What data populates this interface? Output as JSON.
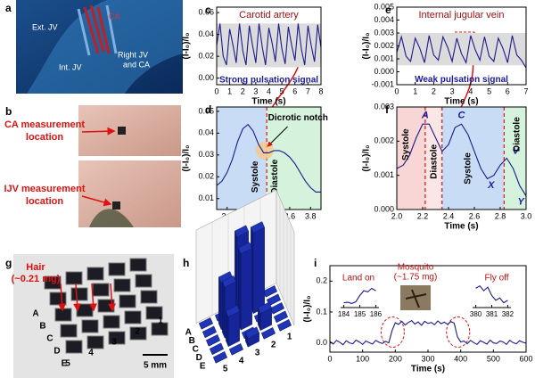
{
  "figure": {
    "panel_labels": [
      "a",
      "b",
      "c",
      "d",
      "e",
      "f",
      "g",
      "h",
      "i"
    ],
    "a_labels": [
      "Ext. JV",
      "CA",
      "Int. JV",
      "Right JV",
      "and CA"
    ],
    "b_labels": [
      [
        "CA measurement",
        "location"
      ],
      [
        "IJV measurement",
        "location"
      ]
    ],
    "g_labels": {
      "hair": [
        "Hair",
        "(~0.21 mg)"
      ],
      "rows": [
        "A",
        "B",
        "C",
        "D",
        "E"
      ],
      "cols": [
        "1",
        "2",
        "3",
        "4",
        "5"
      ],
      "scale": "5 mm"
    }
  },
  "chart_data": [
    {
      "type": "line",
      "title": "Carotid artery",
      "annotations": [
        "Strong pulsation signal"
      ],
      "x_label": "Time (s)",
      "y_label": "(I-I₀)/I₀",
      "color": "#1a1a8c",
      "band": [
        0.01,
        0.05
      ],
      "band_color": "#dcdcdc",
      "x": [
        0,
        0.25,
        0.5,
        0.75,
        1,
        1.25,
        1.5,
        1.75,
        2,
        2.25,
        2.5,
        2.75,
        3,
        3.25,
        3.5,
        3.75,
        4,
        4.25,
        4.5,
        4.75,
        5,
        5.25,
        5.5,
        5.75,
        6,
        6.25,
        6.5,
        6.75,
        7,
        7.25,
        7.5,
        7.75,
        8
      ],
      "values": [
        0.03,
        0.05,
        0.02,
        0.012,
        0.045,
        0.03,
        0.014,
        0.05,
        0.025,
        0.012,
        0.048,
        0.03,
        0.014,
        0.05,
        0.028,
        0.012,
        0.046,
        0.032,
        0.015,
        0.05,
        0.027,
        0.013,
        0.047,
        0.03,
        0.016,
        0.05,
        0.026,
        0.012,
        0.048,
        0.03,
        0.015,
        0.049,
        0.028
      ],
      "xlim": [
        0,
        8
      ],
      "ylim": [
        -0.006,
        0.065
      ],
      "xticks": [
        0,
        1,
        2,
        3,
        4,
        5,
        6,
        7,
        8
      ],
      "yticks": [
        {
          "value": 0,
          "label": "0.00"
        },
        0.02,
        0.04,
        0.06
      ]
    },
    {
      "type": "line",
      "annotations": [
        "Dicrotic notch",
        "Systole",
        "Diastole"
      ],
      "x_label": "Time (s)",
      "y_label": "(I-I₀)/I₀",
      "color": "#1a1a8c",
      "regions": [
        {
          "range": [
            2.9,
            3.38
          ],
          "color": "#c8ddf5"
        },
        {
          "range": [
            3.38,
            3.9
          ],
          "color": "#d4f2dc"
        }
      ],
      "markers": [
        3.38
      ],
      "marker_color": "#e01010",
      "x": [
        2.9,
        2.95,
        3,
        3.05,
        3.1,
        3.15,
        3.2,
        3.25,
        3.3,
        3.35,
        3.4,
        3.45,
        3.5,
        3.55,
        3.6,
        3.65,
        3.7,
        3.75,
        3.8,
        3.85,
        3.9
      ],
      "values": [
        0.016,
        0.018,
        0.022,
        0.028,
        0.036,
        0.042,
        0.044,
        0.041,
        0.035,
        0.031,
        0.031,
        0.032,
        0.032,
        0.031,
        0.029,
        0.026,
        0.022,
        0.018,
        0.015,
        0.013,
        0.013
      ],
      "xlim": [
        2.9,
        3.9
      ],
      "ylim": [
        0.005,
        0.052
      ],
      "xticks": [
        {
          "value": 3,
          "label": "3.0"
        },
        3.2,
        3.4,
        3.6,
        3.8
      ],
      "yticks": [
        0.01,
        0.02,
        0.03,
        0.04,
        0.05
      ]
    },
    {
      "type": "line",
      "title": "Internal jugular vein",
      "annotations": [
        "Weak pulsation signal"
      ],
      "x_label": "Time (s)",
      "y_label": "(I-I₀)/I₀",
      "color": "#1a1a8c",
      "band": [
        0.0005,
        0.003
      ],
      "band_color": "#dcdcdc",
      "x": [
        0,
        0.25,
        0.5,
        0.75,
        1,
        1.25,
        1.5,
        1.75,
        2,
        2.25,
        2.5,
        2.75,
        3,
        3.25,
        3.5,
        3.75,
        4,
        4.25,
        4.5,
        4.75,
        5,
        5.25,
        5.5,
        5.75,
        6,
        6.25,
        6.5,
        6.75,
        7
      ],
      "values": [
        0.0015,
        0.0027,
        0.0012,
        0.0008,
        0.0026,
        0.0018,
        0.0007,
        0.0028,
        0.0013,
        0.0009,
        0.0027,
        0.0019,
        0.0008,
        0.0026,
        0.0014,
        0.0007,
        0.0028,
        0.0017,
        0.0009,
        0.0027,
        0.0012,
        0.0008,
        0.0026,
        0.0018,
        0.0007,
        0.0028,
        0.0013,
        0.0009,
        0.0003
      ],
      "xlim": [
        0,
        7
      ],
      "ylim": [
        -0.001,
        0.005
      ],
      "xticks": [
        0,
        1,
        2,
        3,
        4,
        5,
        6,
        7
      ],
      "yticks": [
        -0.001,
        {
          "value": 0,
          "label": "0.000"
        },
        0.001,
        0.002,
        0.003,
        0.004,
        0.005
      ]
    },
    {
      "type": "line",
      "annotations": [
        "A",
        "C",
        "V",
        "X",
        "Y",
        "Systole",
        "Diastole",
        "Systole",
        "Diastole"
      ],
      "x_label": "Time (s)",
      "y_label": "(I-I₀)/I₀",
      "color": "#1a1a8c",
      "regions": [
        {
          "range": [
            2.0,
            2.22
          ],
          "color": "#f8d6d6"
        },
        {
          "range": [
            2.22,
            2.35
          ],
          "color": "#fbe6e6"
        },
        {
          "range": [
            2.35,
            2.83
          ],
          "color": "#c8ddf5"
        },
        {
          "range": [
            2.83,
            3.0
          ],
          "color": "#d4f2dc"
        }
      ],
      "markers": [
        2.22,
        2.35,
        2.83
      ],
      "marker_color": "#e01010",
      "x": [
        2,
        2.05,
        2.1,
        2.15,
        2.2,
        2.25,
        2.3,
        2.35,
        2.4,
        2.45,
        2.5,
        2.55,
        2.6,
        2.65,
        2.7,
        2.75,
        2.8,
        2.85,
        2.9,
        2.95,
        3
      ],
      "values": [
        0.0012,
        0.0013,
        0.0016,
        0.0021,
        0.0025,
        0.0025,
        0.0021,
        0.0017,
        0.0019,
        0.0024,
        0.0025,
        0.0022,
        0.0017,
        0.0012,
        0.0009,
        0.001,
        0.0013,
        0.0015,
        0.0012,
        0.0007,
        0.0004
      ],
      "xlim": [
        2,
        3
      ],
      "ylim": [
        0,
        0.003
      ],
      "xticks": [
        {
          "value": 2,
          "label": "2.0"
        },
        2.2,
        2.4,
        2.6,
        2.8,
        {
          "value": 3,
          "label": "3.0"
        }
      ],
      "yticks": [
        {
          "value": 0,
          "label": "0.000"
        },
        0.001,
        0.002,
        0.003
      ]
    },
    {
      "type": "bar3d",
      "rows": [
        "A",
        "B",
        "C",
        "D",
        "E"
      ],
      "cols": [
        "1",
        "2",
        "3",
        "4",
        "5"
      ],
      "color": "#1f35b5",
      "values": [
        [
          0,
          0,
          0,
          0,
          0
        ],
        [
          0,
          0.95,
          1.0,
          0.55,
          0
        ],
        [
          0,
          0,
          0.9,
          0.6,
          0
        ],
        [
          0,
          0.2,
          0,
          0.35,
          0
        ],
        [
          0,
          0,
          0.1,
          0,
          0
        ]
      ],
      "zlim": [
        0,
        1
      ]
    },
    {
      "type": "line",
      "annotations": [
        "Land on",
        "Mosquito",
        "(~1.75 mg)",
        "Fly off"
      ],
      "x_label": "Time (s)",
      "y_label": "(I-I₀)/I₀",
      "color": "#1a1a8c",
      "x": [
        0,
        10,
        20,
        30,
        40,
        50,
        60,
        70,
        80,
        90,
        100,
        110,
        120,
        130,
        140,
        150,
        160,
        170,
        180,
        190,
        200,
        210,
        220,
        230,
        240,
        250,
        260,
        270,
        280,
        290,
        300,
        310,
        320,
        330,
        340,
        350,
        360,
        370,
        380,
        390,
        400,
        410,
        420,
        430,
        440,
        450,
        460,
        470,
        480,
        490,
        500,
        510,
        520,
        530,
        540,
        550,
        560,
        570,
        580,
        590,
        600
      ],
      "values": [
        0.005,
        -0.004,
        0.008,
        0.002,
        -0.006,
        0.007,
        0.0,
        -0.003,
        0.009,
        0.003,
        -0.005,
        0.006,
        0.001,
        -0.004,
        0.008,
        0.002,
        -0.002,
        0.005,
        0.0,
        0.04,
        0.065,
        0.06,
        0.07,
        0.058,
        0.066,
        0.072,
        0.061,
        0.068,
        0.057,
        0.07,
        0.063,
        0.066,
        0.059,
        0.071,
        0.062,
        0.067,
        0.06,
        0.069,
        0.064,
        0.02,
        0.003,
        0.006,
        -0.003,
        0.008,
        0.001,
        -0.005,
        0.007,
        0.002,
        -0.004,
        0.009,
        0.0,
        -0.002,
        0.006,
        0.003,
        -0.005,
        0.008,
        0.001,
        -0.003,
        0.007,
        0.002,
        -0.001
      ],
      "xlim": [
        0,
        600
      ],
      "ylim": [
        -0.03,
        0.25
      ],
      "xticks": [
        0,
        100,
        200,
        300,
        400,
        500,
        600
      ],
      "yticks": [
        {
          "value": 0,
          "label": "0.0"
        },
        0.1,
        0.2
      ]
    },
    {
      "type": "line",
      "color": "#1a1a8c",
      "x": [
        184,
        184.25,
        184.5,
        184.75,
        185,
        185.25,
        185.5,
        185.75,
        186
      ],
      "values": [
        0.0,
        0.002,
        -0.003,
        0.004,
        0.03,
        0.05,
        0.045,
        0.06,
        0.05
      ],
      "xlim": [
        183.8,
        186.2
      ],
      "ylim": [
        -0.02,
        0.08
      ],
      "xticks": [
        184,
        185,
        186
      ]
    },
    {
      "type": "line",
      "color": "#1a1a8c",
      "x": [
        380,
        380.25,
        380.5,
        380.75,
        381,
        381.25,
        381.5,
        381.75,
        382
      ],
      "values": [
        0.06,
        0.07,
        0.05,
        0.065,
        0.03,
        0.01,
        0.02,
        0.0,
        0.01
      ],
      "xlim": [
        379.8,
        382.2
      ],
      "ylim": [
        -0.02,
        0.08
      ],
      "xticks": [
        380,
        381,
        382
      ]
    }
  ]
}
